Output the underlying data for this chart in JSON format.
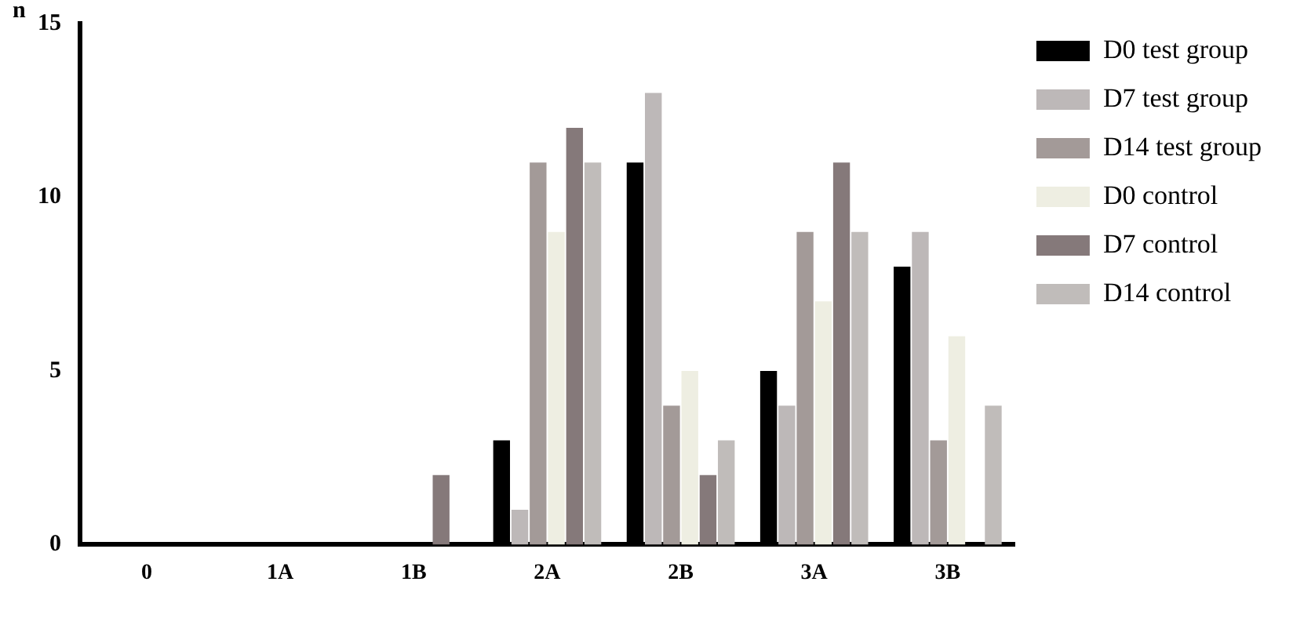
{
  "chart_data": {
    "type": "bar",
    "ylabel": "n",
    "categories": [
      "0",
      "1A",
      "1B",
      "2A",
      "2B",
      "3A",
      "3B"
    ],
    "series": [
      {
        "name": "D0 test group",
        "color": "#000000",
        "values": [
          0,
          0,
          0,
          3,
          11,
          5,
          8
        ]
      },
      {
        "name": "D7 test group",
        "color": "#bdb8b8",
        "values": [
          0,
          0,
          0,
          1,
          13,
          4,
          9
        ]
      },
      {
        "name": "D14 test group",
        "color": "#a39a98",
        "values": [
          0,
          0,
          0,
          11,
          4,
          9,
          3
        ]
      },
      {
        "name": "D0 control",
        "color": "#eeeee2",
        "values": [
          0,
          0,
          0,
          9,
          5,
          7,
          6
        ]
      },
      {
        "name": "D7 control",
        "color": "#85797a",
        "values": [
          0,
          0,
          2,
          12,
          2,
          11,
          0
        ]
      },
      {
        "name": "D14 control",
        "color": "#c0bcba",
        "values": [
          0,
          0,
          0,
          11,
          3,
          9,
          4
        ]
      }
    ],
    "ylim": [
      0,
      15
    ],
    "yticks": [
      0,
      5,
      10,
      15
    ],
    "grid": false,
    "legend": "top right"
  }
}
